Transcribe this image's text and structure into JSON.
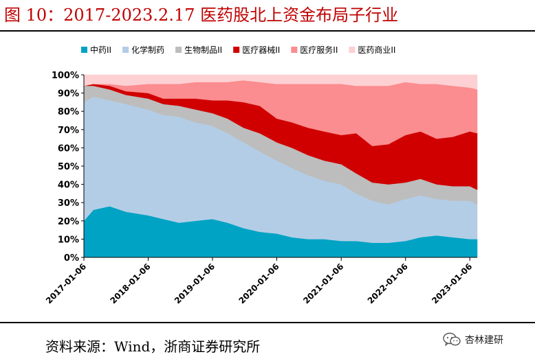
{
  "header": {
    "title": "图 10：2017-2023.2.17 医药股北上资金布局子行业"
  },
  "footer": {
    "source": "资料来源：Wind，浙商证券研究所",
    "brand_text": "杏林建研",
    "brand_icon": "wechat-icon"
  },
  "colors": {
    "series": [
      "#00A3C4",
      "#B4CDE6",
      "#BDBDBD",
      "#D00000",
      "#FB8C8F",
      "#FDD0D3"
    ]
  },
  "chart_data": {
    "type": "area",
    "stacked": true,
    "title": "",
    "xlabel": "",
    "ylabel": "",
    "ylim": [
      0,
      100
    ],
    "yticks": [
      "0%",
      "10%",
      "20%",
      "30%",
      "40%",
      "50%",
      "60%",
      "70%",
      "80%",
      "90%",
      "100%"
    ],
    "xticks": [
      "2017-01-06",
      "2018-01-06",
      "2019-01-06",
      "2020-01-06",
      "2021-01-06",
      "2022-01-06",
      "2023-01-06"
    ],
    "xrange": [
      "2017-01-06",
      "2023-02-17"
    ],
    "legend_position": "top",
    "grid": false,
    "x": [
      "2017-01-06",
      "2017-03-01",
      "2017-06-01",
      "2017-09-01",
      "2018-01-06",
      "2018-04-01",
      "2018-07-01",
      "2018-10-01",
      "2019-01-06",
      "2019-04-01",
      "2019-07-01",
      "2019-10-01",
      "2020-01-06",
      "2020-04-01",
      "2020-07-01",
      "2020-10-01",
      "2021-01-06",
      "2021-04-01",
      "2021-07-01",
      "2021-10-01",
      "2022-01-06",
      "2022-04-01",
      "2022-07-01",
      "2022-10-01",
      "2023-01-06",
      "2023-02-17"
    ],
    "series": [
      {
        "name": "中药II",
        "values": [
          20,
          26,
          28,
          25,
          23,
          21,
          19,
          20,
          21,
          19,
          16,
          14,
          13,
          11,
          10,
          10,
          9,
          9,
          8,
          8,
          9,
          11,
          12,
          11,
          10,
          10
        ]
      },
      {
        "name": "化学制药",
        "values": [
          65,
          62,
          58,
          59,
          58,
          57,
          58,
          54,
          51,
          49,
          47,
          44,
          40,
          38,
          35,
          32,
          31,
          26,
          23,
          21,
          23,
          23,
          20,
          20,
          21,
          19
        ]
      },
      {
        "name": "生物制品II",
        "values": [
          9,
          6,
          6,
          5,
          6,
          6,
          6,
          7,
          7,
          8,
          8,
          10,
          10,
          11,
          11,
          11,
          11,
          11,
          10,
          11,
          9,
          9,
          8,
          8,
          8,
          8
        ]
      },
      {
        "name": "医疗器械II",
        "values": [
          0,
          1,
          2,
          2,
          3,
          3,
          4,
          6,
          7,
          10,
          14,
          15,
          13,
          14,
          15,
          16,
          16,
          22,
          20,
          22,
          26,
          26,
          25,
          27,
          30,
          31
        ]
      },
      {
        "name": "医疗服务II",
        "values": [
          0,
          0,
          1,
          3,
          5,
          8,
          8,
          9,
          10,
          10,
          12,
          13,
          19,
          21,
          24,
          26,
          28,
          26,
          33,
          32,
          29,
          26,
          30,
          28,
          24,
          24
        ]
      },
      {
        "name": "医药商业II",
        "values": [
          6,
          5,
          5,
          6,
          5,
          5,
          5,
          4,
          4,
          4,
          3,
          4,
          5,
          5,
          5,
          5,
          5,
          6,
          6,
          6,
          4,
          5,
          5,
          6,
          7,
          8
        ]
      }
    ]
  }
}
